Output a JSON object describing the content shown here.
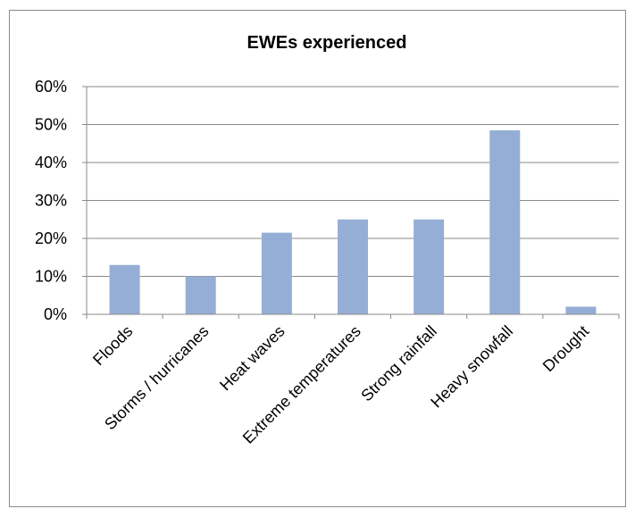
{
  "chart_data": {
    "type": "bar",
    "title": "EWEs experienced",
    "xlabel": "",
    "ylabel": "",
    "categories": [
      "Floods",
      "Storms / hurricanes",
      "Heat waves",
      "Extreme temperatures",
      "Strong rainfall",
      "Heavy snowfall",
      "Drought"
    ],
    "values": [
      13,
      10,
      21.5,
      25,
      25,
      48.5,
      2
    ],
    "ylim": [
      0,
      60
    ],
    "yticks": [
      "0%",
      "10%",
      "20%",
      "30%",
      "40%",
      "50%",
      "60%"
    ],
    "grid": true,
    "legend": "none",
    "bar_color": "#95aed5"
  }
}
